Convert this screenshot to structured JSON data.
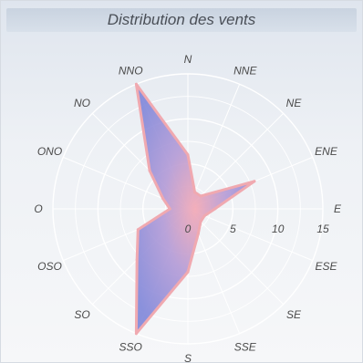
{
  "chart_data": {
    "type": "radar",
    "title": "Distribution des vents",
    "directions": [
      "N",
      "NNE",
      "NE",
      "ENE",
      "E",
      "ESE",
      "SE",
      "SSE",
      "S",
      "SSO",
      "SO",
      "OSO",
      "O",
      "ONO",
      "NO",
      "NNO"
    ],
    "direction_labels": [
      "N",
      "NNE",
      "NE",
      "ENE",
      "E",
      "ESE",
      "SE",
      "SSE",
      "S",
      "SSO",
      "SO",
      "OSO",
      "O",
      "ONO",
      "NO",
      "NNO"
    ],
    "values": [
      6,
      2,
      2,
      8,
      3,
      2,
      2,
      3,
      7,
      15,
      8,
      6,
      2,
      3,
      6,
      15
    ],
    "rmax": 15,
    "radial_ticks": [
      5,
      10,
      15
    ],
    "center_label": "0",
    "grid": true,
    "fill_color": "#8e8fd8",
    "edge_color": "#f0a9b0",
    "grid_color": "#ffffff"
  }
}
